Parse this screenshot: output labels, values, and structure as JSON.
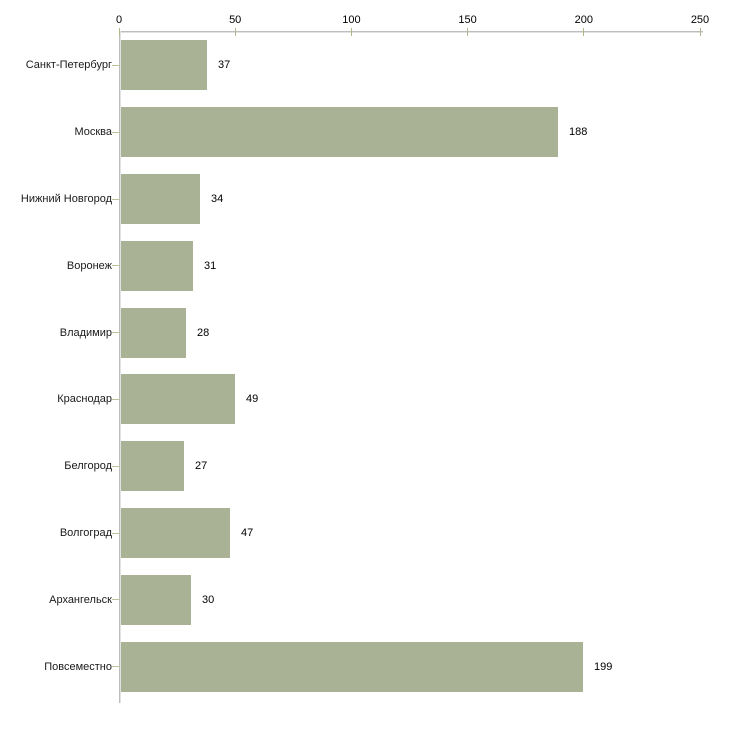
{
  "chart_data": {
    "type": "bar",
    "orientation": "horizontal",
    "title": "",
    "xlabel": "",
    "ylabel": "",
    "grid": false,
    "legend": "none",
    "categories": [
      "Санкт-Петербург",
      "Москва",
      "Нижний Новгород",
      "Воронеж",
      "Владимир",
      "Краснодар",
      "Белгород",
      "Волгоград",
      "Архангельск",
      "Повсеместно"
    ],
    "values": [
      37,
      188,
      34,
      31,
      28,
      49,
      27,
      47,
      30,
      199
    ],
    "x_ticks": [
      0,
      50,
      100,
      150,
      200,
      250
    ],
    "xlim": [
      0,
      250
    ],
    "data_labels_shown": true,
    "colors": {
      "bar_fill": "#a9b294",
      "axis_line": "#bdbdbd",
      "tick_mark": "#b5b589",
      "category_tick": "#c2c29a",
      "text": "#000000",
      "background": "#ffffff"
    }
  }
}
